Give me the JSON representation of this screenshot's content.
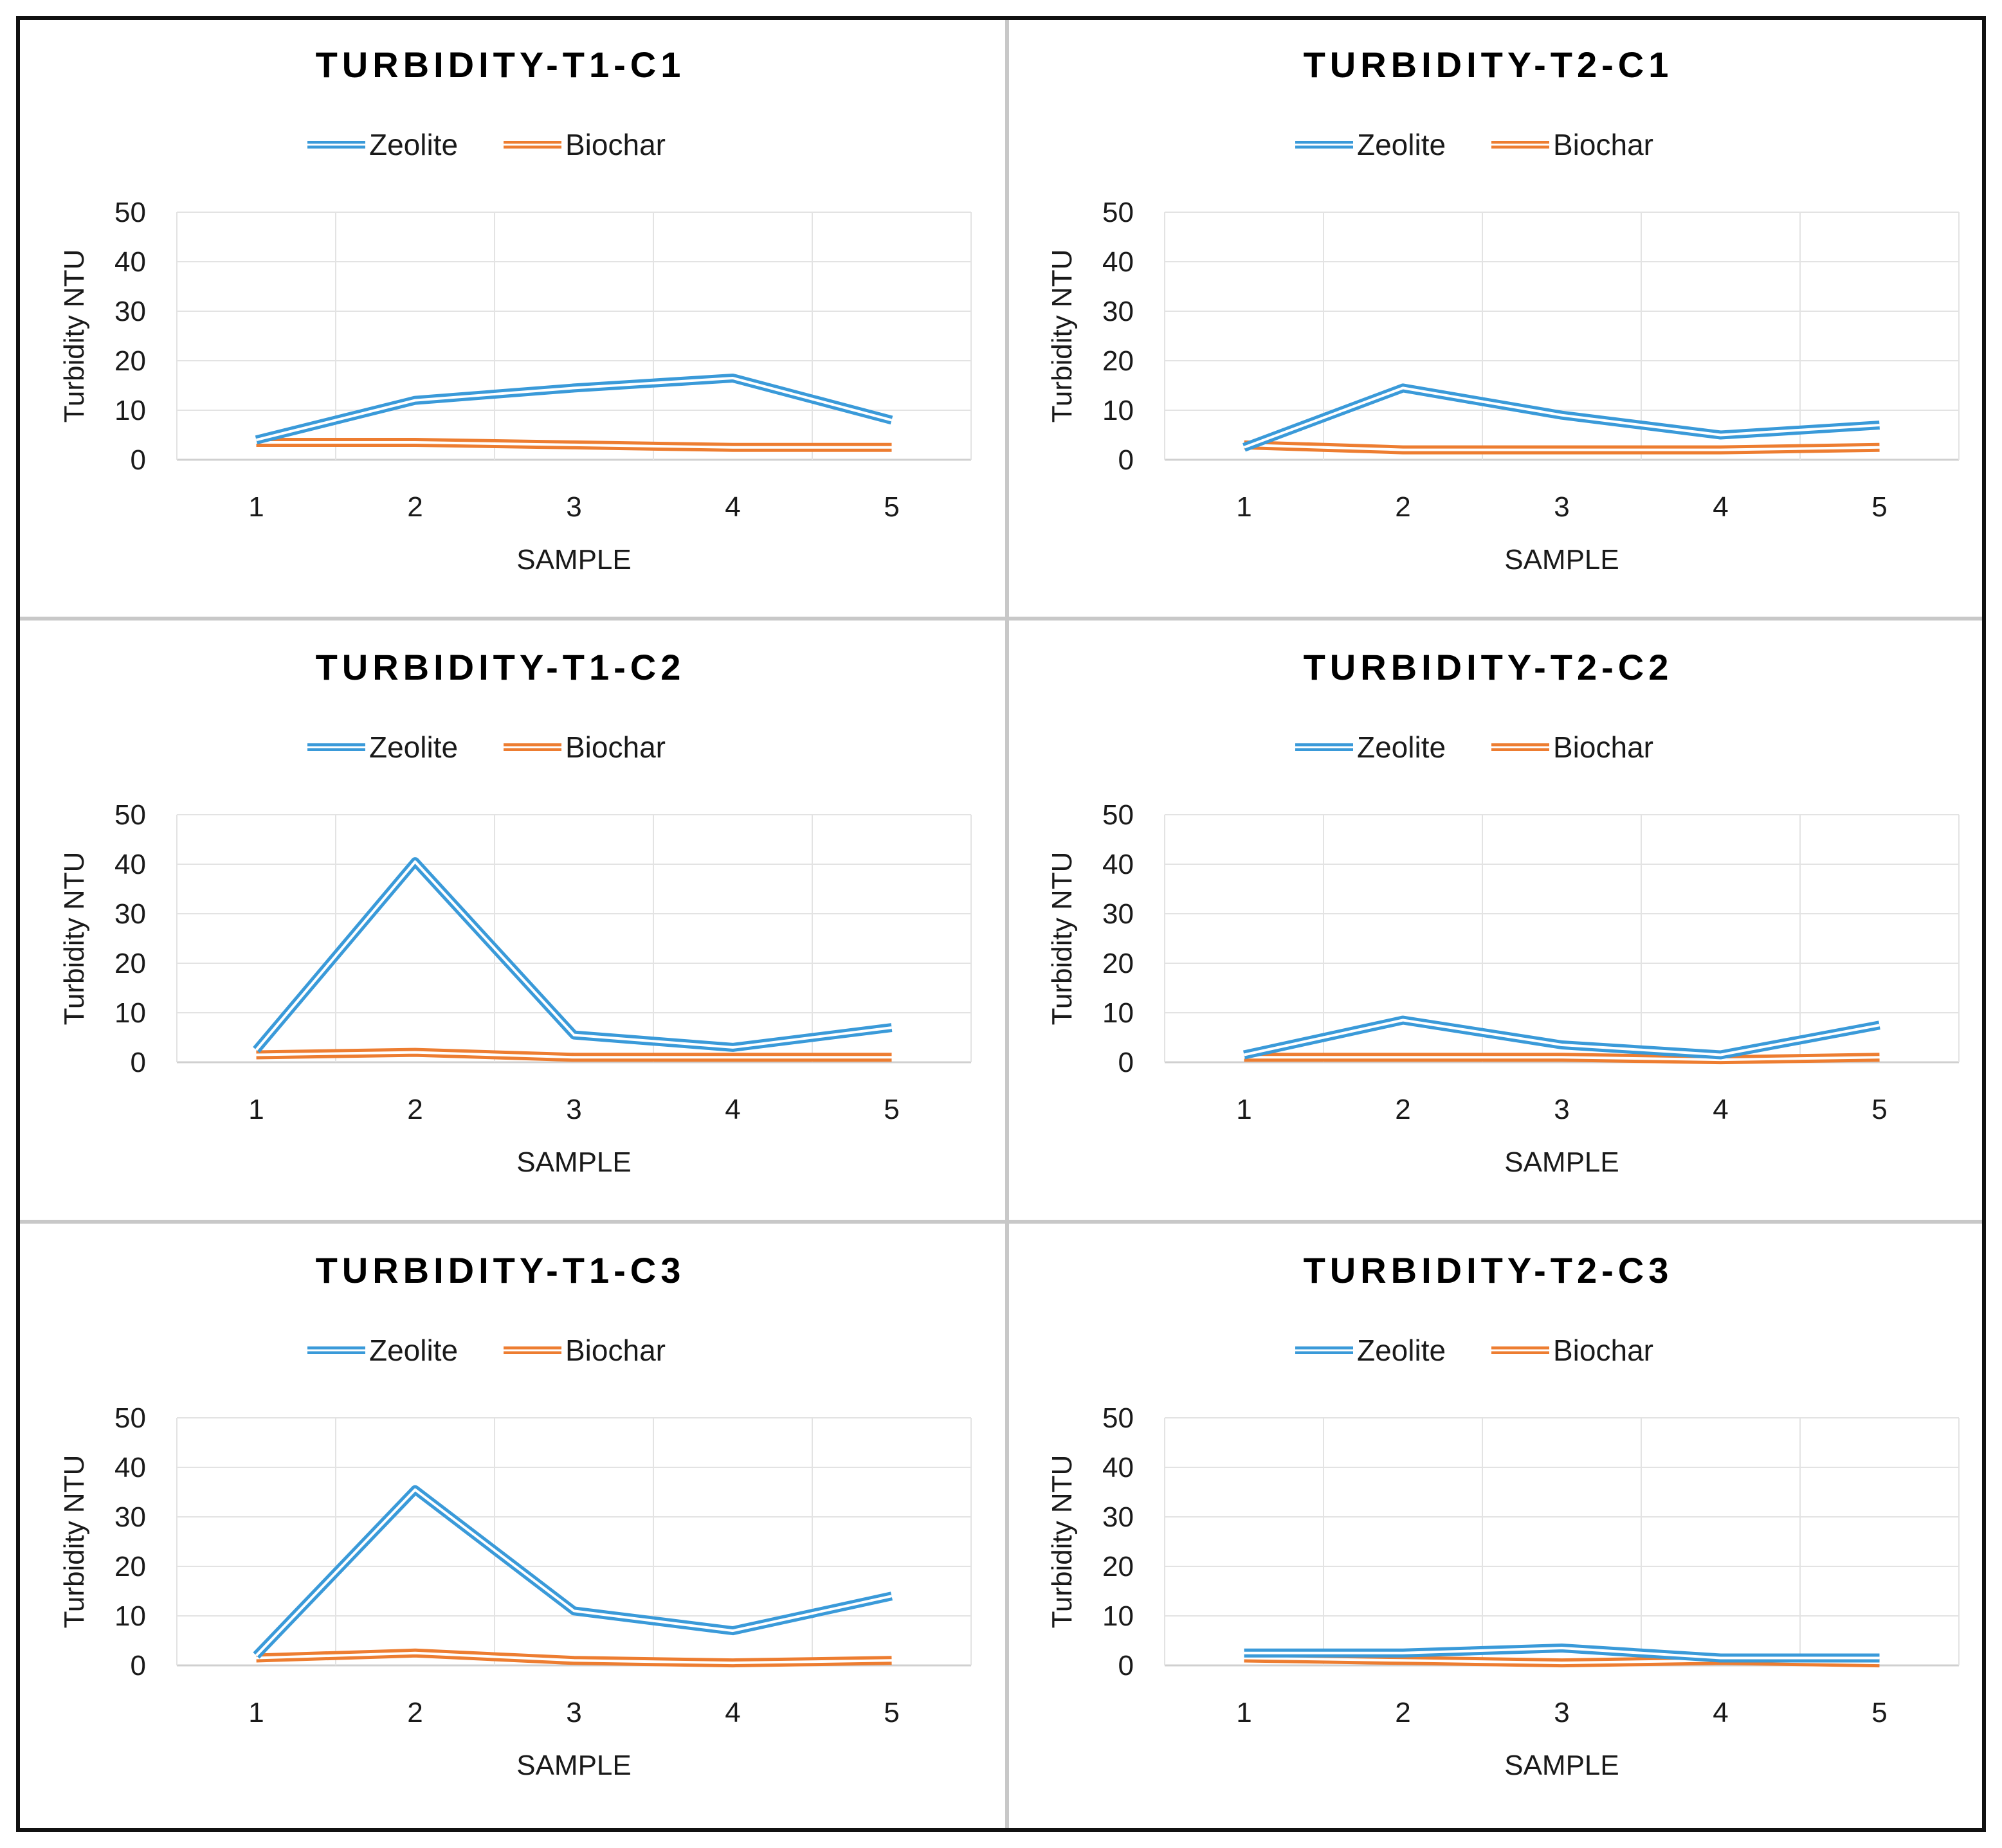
{
  "legend_labels": [
    "Zeolite",
    "Biochar"
  ],
  "colors": {
    "zeolite": "#3a9ad9",
    "biochar": "#ed7d31",
    "grid": "#e3e3e3",
    "axis": "#d0d0d0",
    "outer_border": "#111111",
    "panel_divider": "#c8c8c8"
  },
  "chart_data": [
    {
      "type": "line",
      "title": "TURBIDITY-T1-C1",
      "xlabel": "SAMPLE",
      "ylabel": "Turbidity NTU",
      "categories": [
        "1",
        "2",
        "3",
        "4",
        "5"
      ],
      "ylim": [
        0,
        50
      ],
      "yticks": [
        0,
        10,
        20,
        30,
        40,
        50
      ],
      "legend_position": "top-center",
      "grid": true,
      "series": [
        {
          "name": "Zeolite",
          "values": [
            4,
            12,
            14.5,
            16.5,
            8
          ]
        },
        {
          "name": "Biochar",
          "values": [
            3.5,
            3.5,
            3,
            2.5,
            2.5
          ]
        }
      ]
    },
    {
      "type": "line",
      "title": "TURBIDITY-T2-C1",
      "xlabel": "SAMPLE",
      "ylabel": "Turbidity NTU",
      "categories": [
        "1",
        "2",
        "3",
        "4",
        "5"
      ],
      "ylim": [
        0,
        50
      ],
      "yticks": [
        0,
        10,
        20,
        30,
        40,
        50
      ],
      "legend_position": "top-center",
      "grid": true,
      "series": [
        {
          "name": "Zeolite",
          "values": [
            2.5,
            14.5,
            9,
            5,
            7
          ]
        },
        {
          "name": "Biochar",
          "values": [
            3,
            2,
            2,
            2,
            2.5
          ]
        }
      ]
    },
    {
      "type": "line",
      "title": "TURBIDITY-T1-C2",
      "xlabel": "SAMPLE",
      "ylabel": "Turbidity NTU",
      "categories": [
        "1",
        "2",
        "3",
        "4",
        "5"
      ],
      "ylim": [
        0,
        50
      ],
      "yticks": [
        0,
        10,
        20,
        30,
        40,
        50
      ],
      "legend_position": "top-center",
      "grid": true,
      "series": [
        {
          "name": "Zeolite",
          "values": [
            2.5,
            40.5,
            5.5,
            3,
            7
          ]
        },
        {
          "name": "Biochar",
          "values": [
            1.5,
            2,
            1,
            1,
            1
          ]
        }
      ]
    },
    {
      "type": "line",
      "title": "TURBIDITY-T2-C2",
      "xlabel": "SAMPLE",
      "ylabel": "Turbidity NTU",
      "categories": [
        "1",
        "2",
        "3",
        "4",
        "5"
      ],
      "ylim": [
        0,
        50
      ],
      "yticks": [
        0,
        10,
        20,
        30,
        40,
        50
      ],
      "legend_position": "top-center",
      "grid": true,
      "series": [
        {
          "name": "Zeolite",
          "values": [
            1.5,
            8.5,
            3.5,
            1.5,
            7.5
          ]
        },
        {
          "name": "Biochar",
          "values": [
            1,
            1,
            1,
            0.5,
            1
          ]
        }
      ]
    },
    {
      "type": "line",
      "title": "TURBIDITY-T1-C3",
      "xlabel": "SAMPLE",
      "ylabel": "Turbidity NTU",
      "categories": [
        "1",
        "2",
        "3",
        "4",
        "5"
      ],
      "ylim": [
        0,
        50
      ],
      "yticks": [
        0,
        10,
        20,
        30,
        40,
        50
      ],
      "legend_position": "top-center",
      "grid": true,
      "series": [
        {
          "name": "Zeolite",
          "values": [
            2,
            35.5,
            11,
            7,
            14
          ]
        },
        {
          "name": "Biochar",
          "values": [
            1.5,
            2.5,
            1,
            0.5,
            1
          ]
        }
      ]
    },
    {
      "type": "line",
      "title": "TURBIDITY-T2-C3",
      "xlabel": "SAMPLE",
      "ylabel": "Turbidity NTU",
      "categories": [
        "1",
        "2",
        "3",
        "4",
        "5"
      ],
      "ylim": [
        0,
        50
      ],
      "yticks": [
        0,
        10,
        20,
        30,
        40,
        50
      ],
      "legend_position": "top-center",
      "grid": true,
      "series": [
        {
          "name": "Zeolite",
          "values": [
            2.5,
            2.5,
            3.5,
            1.5,
            1.5
          ]
        },
        {
          "name": "Biochar",
          "values": [
            1.5,
            1,
            0.5,
            1,
            0.5
          ]
        }
      ]
    }
  ]
}
